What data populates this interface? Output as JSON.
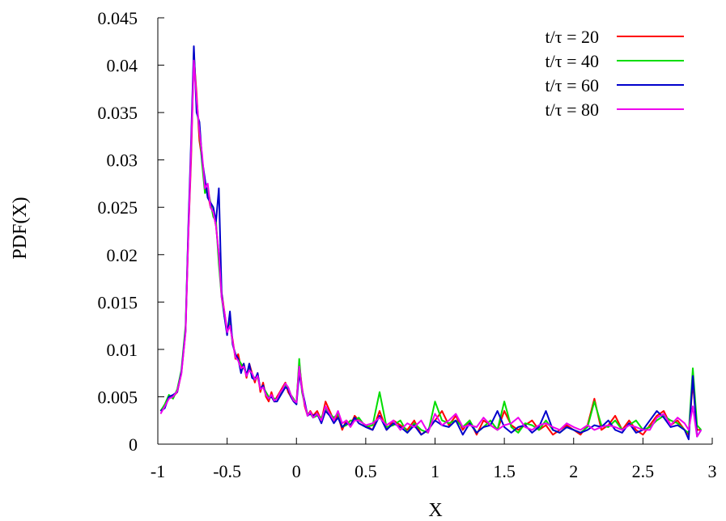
{
  "chart_data": {
    "type": "line",
    "title": "",
    "xlabel": "X",
    "ylabel": "PDF(X)",
    "xlim": [
      -1,
      3
    ],
    "ylim": [
      0,
      0.045
    ],
    "xticks": [
      -1,
      -0.5,
      0,
      0.5,
      1,
      1.5,
      2,
      2.5,
      3
    ],
    "xtick_labels": [
      "-1",
      "-0.5",
      "0",
      "0.5",
      "1",
      "1.5",
      "2",
      "2.5",
      "3"
    ],
    "yticks": [
      0,
      0.005,
      0.01,
      0.015,
      0.02,
      0.025,
      0.03,
      0.035,
      0.04,
      0.045
    ],
    "ytick_labels": [
      "0",
      "0.005",
      "0.01",
      "0.015",
      "0.02",
      "0.025",
      "0.03",
      "0.035",
      "0.04",
      "0.045"
    ],
    "grid": false,
    "legend_position": "top-right",
    "x": [
      -0.98,
      -0.95,
      -0.92,
      -0.89,
      -0.86,
      -0.83,
      -0.8,
      -0.78,
      -0.76,
      -0.74,
      -0.72,
      -0.7,
      -0.68,
      -0.66,
      -0.64,
      -0.62,
      -0.6,
      -0.58,
      -0.56,
      -0.54,
      -0.52,
      -0.5,
      -0.48,
      -0.46,
      -0.44,
      -0.42,
      -0.4,
      -0.38,
      -0.36,
      -0.34,
      -0.32,
      -0.3,
      -0.28,
      -0.26,
      -0.24,
      -0.22,
      -0.2,
      -0.18,
      -0.16,
      -0.14,
      -0.12,
      -0.1,
      -0.08,
      -0.06,
      -0.04,
      -0.02,
      0.0,
      0.02,
      0.04,
      0.06,
      0.08,
      0.1,
      0.12,
      0.15,
      0.18,
      0.21,
      0.24,
      0.27,
      0.3,
      0.33,
      0.36,
      0.39,
      0.42,
      0.45,
      0.5,
      0.55,
      0.6,
      0.65,
      0.7,
      0.75,
      0.8,
      0.85,
      0.9,
      0.95,
      1.0,
      1.05,
      1.1,
      1.15,
      1.2,
      1.25,
      1.3,
      1.35,
      1.4,
      1.45,
      1.5,
      1.55,
      1.6,
      1.65,
      1.7,
      1.75,
      1.8,
      1.85,
      1.9,
      1.95,
      2.0,
      2.05,
      2.1,
      2.15,
      2.2,
      2.25,
      2.3,
      2.35,
      2.4,
      2.45,
      2.5,
      2.55,
      2.6,
      2.65,
      2.7,
      2.75,
      2.8,
      2.83,
      2.86,
      2.89,
      2.92
    ],
    "series": [
      {
        "name": "t/τ = 20",
        "color": "#ff0000",
        "values": [
          0.0035,
          0.004,
          0.005,
          0.005,
          0.0055,
          0.0075,
          0.012,
          0.022,
          0.03,
          0.041,
          0.037,
          0.032,
          0.03,
          0.027,
          0.0265,
          0.025,
          0.0245,
          0.023,
          0.02,
          0.016,
          0.014,
          0.012,
          0.0125,
          0.011,
          0.009,
          0.0095,
          0.008,
          0.0085,
          0.007,
          0.0085,
          0.0075,
          0.0065,
          0.0075,
          0.0055,
          0.0065,
          0.005,
          0.0045,
          0.0055,
          0.0045,
          0.005,
          0.0055,
          0.006,
          0.0065,
          0.0055,
          0.005,
          0.0045,
          0.0045,
          0.0085,
          0.006,
          0.004,
          0.003,
          0.0035,
          0.003,
          0.0035,
          0.0025,
          0.0045,
          0.0035,
          0.0025,
          0.003,
          0.0015,
          0.0025,
          0.002,
          0.003,
          0.0025,
          0.002,
          0.0015,
          0.0035,
          0.0015,
          0.0025,
          0.002,
          0.0015,
          0.0025,
          0.001,
          0.0015,
          0.0025,
          0.0035,
          0.002,
          0.003,
          0.0015,
          0.0025,
          0.001,
          0.0025,
          0.002,
          0.0015,
          0.0035,
          0.002,
          0.0015,
          0.002,
          0.0025,
          0.0015,
          0.002,
          0.001,
          0.0015,
          0.002,
          0.0015,
          0.001,
          0.002,
          0.0048,
          0.0015,
          0.002,
          0.003,
          0.0015,
          0.0025,
          0.0015,
          0.001,
          0.002,
          0.003,
          0.0035,
          0.002,
          0.0025,
          0.0015,
          0.001,
          0.0065,
          0.0015,
          0.0015
        ]
      },
      {
        "name": "t/τ = 40",
        "color": "#00dd00",
        "values": [
          0.0035,
          0.0042,
          0.0052,
          0.0048,
          0.0058,
          0.0078,
          0.0125,
          0.0225,
          0.031,
          0.0415,
          0.036,
          0.033,
          0.0295,
          0.0265,
          0.027,
          0.0255,
          0.024,
          0.0235,
          0.019,
          0.0155,
          0.0135,
          0.012,
          0.013,
          0.0105,
          0.0095,
          0.009,
          0.0085,
          0.008,
          0.0075,
          0.008,
          0.0072,
          0.007,
          0.007,
          0.006,
          0.006,
          0.0055,
          0.005,
          0.005,
          0.0048,
          0.0048,
          0.0052,
          0.0058,
          0.0062,
          0.006,
          0.0052,
          0.0048,
          0.0042,
          0.009,
          0.0055,
          0.0042,
          0.0032,
          0.0032,
          0.0028,
          0.003,
          0.0028,
          0.0038,
          0.0032,
          0.0028,
          0.0032,
          0.0018,
          0.002,
          0.0025,
          0.0025,
          0.0028,
          0.0018,
          0.002,
          0.0055,
          0.0018,
          0.002,
          0.0025,
          0.0012,
          0.0022,
          0.0015,
          0.0012,
          0.0045,
          0.0025,
          0.0022,
          0.0025,
          0.0018,
          0.0025,
          0.0012,
          0.0018,
          0.0025,
          0.0015,
          0.0045,
          0.0018,
          0.0012,
          0.0022,
          0.002,
          0.0015,
          0.0025,
          0.0015,
          0.0012,
          0.0018,
          0.0015,
          0.0012,
          0.0018,
          0.0045,
          0.002,
          0.0018,
          0.0025,
          0.0015,
          0.002,
          0.0025,
          0.0015,
          0.0018,
          0.0025,
          0.003,
          0.0025,
          0.0022,
          0.0015,
          0.0012,
          0.008,
          0.002,
          0.0015
        ]
      },
      {
        "name": "t/τ = 60",
        "color": "#0000cc",
        "values": [
          0.0035,
          0.0038,
          0.005,
          0.0052,
          0.0055,
          0.0076,
          0.012,
          0.023,
          0.032,
          0.042,
          0.035,
          0.034,
          0.03,
          0.028,
          0.026,
          0.0255,
          0.025,
          0.0235,
          0.027,
          0.016,
          0.0135,
          0.0115,
          0.014,
          0.0105,
          0.0095,
          0.009,
          0.0075,
          0.0085,
          0.0072,
          0.0085,
          0.007,
          0.0068,
          0.0075,
          0.0058,
          0.0062,
          0.0052,
          0.0048,
          0.005,
          0.0045,
          0.0045,
          0.005,
          0.0055,
          0.006,
          0.0058,
          0.005,
          0.0045,
          0.0042,
          0.0075,
          0.0058,
          0.0045,
          0.003,
          0.0032,
          0.003,
          0.0032,
          0.0022,
          0.0035,
          0.003,
          0.0022,
          0.0028,
          0.0018,
          0.0022,
          0.002,
          0.0028,
          0.0022,
          0.0018,
          0.0015,
          0.003,
          0.0015,
          0.0022,
          0.0018,
          0.0012,
          0.002,
          0.001,
          0.0015,
          0.0025,
          0.002,
          0.0018,
          0.0025,
          0.001,
          0.0022,
          0.0012,
          0.0018,
          0.002,
          0.0035,
          0.0018,
          0.0012,
          0.0018,
          0.002,
          0.0012,
          0.0018,
          0.0035,
          0.0015,
          0.0012,
          0.0018,
          0.0015,
          0.0012,
          0.0015,
          0.002,
          0.0018,
          0.0025,
          0.0015,
          0.0012,
          0.0022,
          0.0012,
          0.0015,
          0.0025,
          0.0035,
          0.0028,
          0.0018,
          0.002,
          0.0015,
          0.0005,
          0.0072,
          0.0008,
          0.0015
        ]
      },
      {
        "name": "t/τ = 80",
        "color": "#ee00ee",
        "values": [
          0.0032,
          0.004,
          0.0048,
          0.005,
          0.0056,
          0.0074,
          0.0118,
          0.022,
          0.031,
          0.0405,
          0.0365,
          0.033,
          0.0305,
          0.027,
          0.0275,
          0.025,
          0.0245,
          0.023,
          0.02,
          0.0155,
          0.014,
          0.0118,
          0.0125,
          0.0108,
          0.0092,
          0.0088,
          0.008,
          0.0082,
          0.0072,
          0.0078,
          0.0075,
          0.0068,
          0.0072,
          0.0058,
          0.006,
          0.0052,
          0.0048,
          0.0052,
          0.0046,
          0.0048,
          0.0054,
          0.0058,
          0.0064,
          0.006,
          0.0052,
          0.0046,
          0.0044,
          0.0082,
          0.0058,
          0.0042,
          0.003,
          0.0034,
          0.0028,
          0.0032,
          0.0025,
          0.004,
          0.0032,
          0.0025,
          0.0035,
          0.0022,
          0.0025,
          0.0018,
          0.0025,
          0.0025,
          0.002,
          0.0022,
          0.0028,
          0.002,
          0.0025,
          0.0015,
          0.0022,
          0.0018,
          0.0025,
          0.0012,
          0.0032,
          0.002,
          0.0025,
          0.0032,
          0.0018,
          0.002,
          0.0018,
          0.0028,
          0.002,
          0.0015,
          0.002,
          0.0022,
          0.0028,
          0.0018,
          0.0015,
          0.002,
          0.0022,
          0.0018,
          0.0015,
          0.0022,
          0.0018,
          0.0015,
          0.002,
          0.0015,
          0.0018,
          0.002,
          0.0018,
          0.0015,
          0.002,
          0.0018,
          0.0015,
          0.0015,
          0.0028,
          0.0032,
          0.002,
          0.0028,
          0.0022,
          0.0015,
          0.004,
          0.0008,
          0.0015
        ]
      }
    ]
  }
}
